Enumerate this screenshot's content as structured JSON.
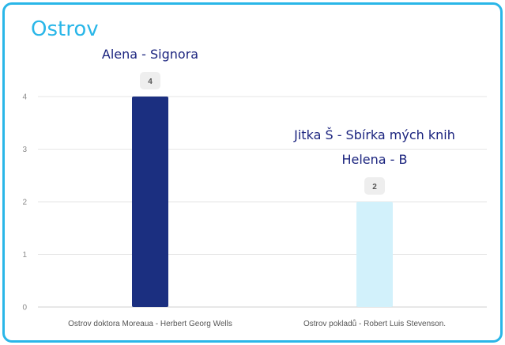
{
  "title": "Ostrov",
  "chart_data": {
    "type": "bar",
    "categories": [
      "Ostrov doktora Moreaua - Herbert Georg Wells",
      "Ostrov pokladů - Robert Luis Stevenson."
    ],
    "values": [
      4,
      2
    ],
    "colors": [
      "#1b2f80",
      "#d2f1fb"
    ],
    "ylim": [
      0,
      4
    ],
    "yticks": [
      0,
      1,
      2,
      3,
      4
    ],
    "grid": true,
    "data_labels": [
      "4",
      "2"
    ],
    "annotations": [
      [
        "Alena - Signora"
      ],
      [
        "Jitka Š - Sbírka mých knih",
        "Helena - B"
      ]
    ]
  }
}
